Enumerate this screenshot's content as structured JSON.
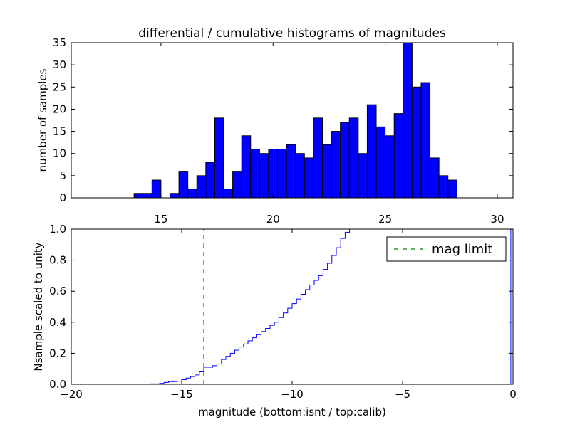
{
  "chart_data": [
    {
      "type": "bar",
      "title": "differential / cumulative histograms of magnitudes",
      "xlabel": "",
      "ylabel": "number of samples",
      "xlim": [
        11,
        30.7
      ],
      "ylim": [
        0,
        35
      ],
      "bin_width": 0.4,
      "bar_color": "#0000ff",
      "edge_color": "#000000",
      "xticks": [
        15,
        20,
        25,
        30
      ],
      "xtick_labels": [
        "15",
        "20",
        "25",
        "30"
      ],
      "yticks": [
        0,
        5,
        10,
        15,
        20,
        25,
        30,
        35
      ],
      "ytick_labels": [
        "0",
        "5",
        "10",
        "15",
        "20",
        "25",
        "30",
        "35"
      ],
      "bin_starts": [
        13.8,
        14.2,
        14.6,
        15.0,
        15.4,
        15.8,
        16.2,
        16.6,
        17.0,
        17.4,
        17.8,
        18.2,
        18.6,
        19.0,
        19.4,
        19.8,
        20.2,
        20.6,
        21.0,
        21.4,
        21.8,
        22.2,
        22.6,
        23.0,
        23.4,
        23.8,
        24.2,
        24.6,
        25.0,
        25.4,
        25.8,
        26.2,
        26.6,
        27.0,
        27.4,
        27.8,
        28.2
      ],
      "values": [
        1,
        1,
        4,
        0,
        1,
        6,
        2,
        5,
        8,
        18,
        2,
        6,
        14,
        11,
        10,
        11,
        11,
        12,
        10,
        9,
        18,
        12,
        15,
        17,
        18,
        10,
        21,
        16,
        14,
        19,
        35,
        25,
        26,
        9,
        5,
        4,
        0
      ]
    },
    {
      "type": "line",
      "style": "step",
      "xlabel": "magnitude (bottom:isnt / top:calib)",
      "ylabel": "Nsample scaled to unity",
      "xlim": [
        -20,
        0
      ],
      "ylim": [
        0,
        1.0
      ],
      "line_color": "#0000ff",
      "xticks": [
        -20,
        -15,
        -10,
        -5,
        0
      ],
      "xtick_labels": [
        "−20",
        "−15",
        "−10",
        "−5",
        "0"
      ],
      "yticks": [
        0,
        0.2,
        0.4,
        0.6,
        0.8,
        1.0
      ],
      "ytick_labels": [
        "0.0",
        "0.2",
        "0.4",
        "0.6",
        "0.8",
        "1.0"
      ],
      "x": [
        -20,
        -16.4,
        -16.0,
        -15.8,
        -15.6,
        -15.2,
        -15.0,
        -14.8,
        -14.6,
        -14.4,
        -14.2,
        -14.0,
        -13.6,
        -13.4,
        -13.2,
        -13.0,
        -12.8,
        -12.6,
        -12.4,
        -12.2,
        -12.0,
        -11.8,
        -11.6,
        -11.4,
        -11.2,
        -11.0,
        -10.8,
        -10.6,
        -10.4,
        -10.2,
        -10.0,
        -9.8,
        -9.6,
        -9.4,
        -9.2,
        -9.0,
        -8.8,
        -8.6,
        -8.4,
        -8.2,
        -8.0,
        -7.8,
        -7.6,
        -7.4,
        -0.1
      ],
      "y": [
        0.0,
        0.003,
        0.006,
        0.012,
        0.017,
        0.02,
        0.03,
        0.04,
        0.05,
        0.06,
        0.08,
        0.11,
        0.12,
        0.13,
        0.16,
        0.18,
        0.2,
        0.22,
        0.24,
        0.26,
        0.28,
        0.3,
        0.32,
        0.34,
        0.36,
        0.38,
        0.4,
        0.43,
        0.46,
        0.49,
        0.52,
        0.55,
        0.58,
        0.61,
        0.64,
        0.67,
        0.7,
        0.74,
        0.78,
        0.83,
        0.88,
        0.94,
        0.98,
        1.0,
        1.0
      ],
      "reference_line": {
        "label": "mag limit",
        "x": -14.0,
        "color": "#008000",
        "style": "dashed"
      },
      "legend": {
        "position": "upper right",
        "entries": [
          "mag limit"
        ]
      }
    }
  ]
}
